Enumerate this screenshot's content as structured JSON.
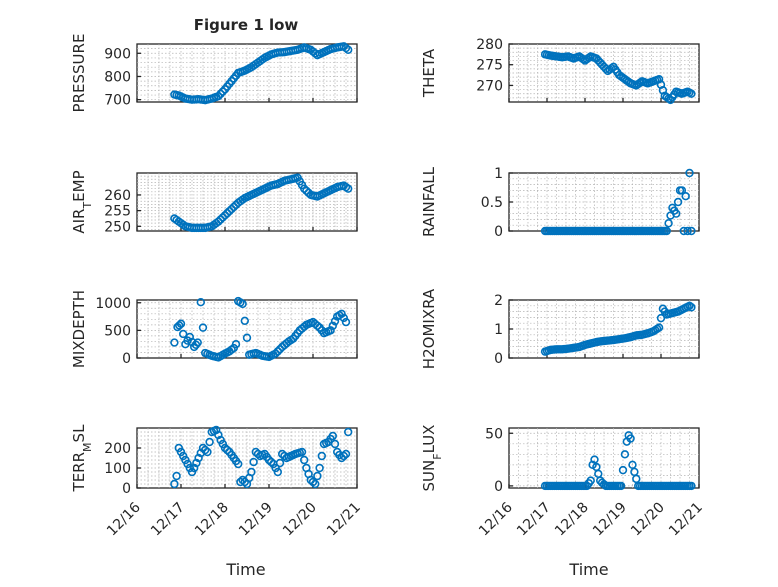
{
  "figure_title": "Figure 1 low",
  "x_axis_label": "Time",
  "x_tick_labels": [
    "12/16",
    "12/17",
    "12/18",
    "12/19",
    "12/20",
    "12/21"
  ],
  "chart_data": [
    {
      "type": "scatter",
      "ylabel": "PRESSURE",
      "xlim": [
        16,
        21
      ],
      "ylim": [
        690,
        940
      ],
      "yticks": [
        700,
        800,
        900
      ],
      "grid": true,
      "x": [
        16.85,
        16.95,
        17.1,
        17.25,
        17.4,
        17.55,
        17.7,
        17.85,
        18.0,
        18.15,
        18.3,
        18.45,
        18.6,
        18.75,
        18.9,
        19.05,
        19.2,
        19.35,
        19.5,
        19.65,
        19.8,
        19.95,
        20.1,
        20.25,
        20.4,
        20.55,
        20.7,
        20.8
      ],
      "y": [
        722,
        718,
        705,
        700,
        702,
        698,
        705,
        715,
        745,
        780,
        815,
        825,
        840,
        860,
        880,
        895,
        903,
        905,
        910,
        915,
        925,
        915,
        892,
        905,
        918,
        925,
        930,
        915
      ]
    },
    {
      "type": "scatter",
      "ylabel": "THETA",
      "xlim": [
        16,
        21
      ],
      "ylim": [
        266,
        280
      ],
      "yticks": [
        270,
        275,
        280
      ],
      "grid": true,
      "x": [
        16.95,
        17.1,
        17.25,
        17.4,
        17.55,
        17.7,
        17.85,
        18.0,
        18.15,
        18.3,
        18.45,
        18.6,
        18.75,
        18.9,
        19.05,
        19.2,
        19.35,
        19.5,
        19.65,
        19.8,
        19.95,
        20.1,
        20.25,
        20.4,
        20.55,
        20.7,
        20.8
      ],
      "y": [
        277.5,
        277.2,
        277.0,
        276.8,
        277.0,
        276.5,
        277.0,
        276.0,
        277.0,
        276.5,
        275.0,
        273.5,
        274.5,
        272.5,
        271.5,
        270.5,
        270.0,
        271.0,
        270.5,
        271.0,
        271.5,
        267.5,
        266.5,
        268.5,
        268.0,
        268.5,
        268.0
      ]
    },
    {
      "type": "scatter",
      "ylabel": "AIR_TEMP",
      "xlim": [
        16,
        21
      ],
      "ylim": [
        248.5,
        267
      ],
      "yticks": [
        250,
        255,
        260
      ],
      "grid": true,
      "x": [
        16.85,
        16.95,
        17.1,
        17.25,
        17.4,
        17.55,
        17.7,
        17.85,
        18.0,
        18.15,
        18.3,
        18.45,
        18.6,
        18.75,
        18.9,
        19.05,
        19.2,
        19.35,
        19.5,
        19.65,
        19.8,
        19.95,
        20.1,
        20.25,
        20.4,
        20.55,
        20.7,
        20.8
      ],
      "y": [
        252.5,
        251.5,
        250.0,
        249.5,
        249.5,
        249.5,
        250.0,
        251.5,
        253.5,
        255.5,
        257.5,
        259.0,
        260.0,
        261.0,
        262.0,
        263.0,
        263.5,
        264.5,
        265.0,
        265.5,
        262.0,
        260.0,
        259.5,
        260.5,
        261.5,
        262.5,
        263.0,
        262.0
      ]
    },
    {
      "type": "scatter",
      "ylabel": "RAINFALL",
      "xlim": [
        16,
        21
      ],
      "ylim": [
        0,
        1
      ],
      "yticks": [
        0,
        0.5,
        1
      ],
      "grid": true,
      "x": [
        16.95,
        17.3,
        17.65,
        18.0,
        18.35,
        18.7,
        19.05,
        19.4,
        19.75,
        20.0,
        20.15,
        20.3,
        20.4,
        20.5,
        20.55,
        20.6,
        20.65,
        20.7,
        20.75,
        20.8
      ],
      "y": [
        0,
        0,
        0,
        0,
        0,
        0,
        0,
        0,
        0,
        0,
        0,
        0.4,
        0.3,
        0.7,
        0.7,
        0,
        0.6,
        0,
        1.0,
        0
      ]
    },
    {
      "type": "scatter",
      "ylabel": "MIXDEPTH",
      "xlim": [
        16,
        21
      ],
      "ylim": [
        0,
        1050
      ],
      "yticks": [
        0,
        500,
        1000
      ],
      "grid": true,
      "x": [
        16.85,
        16.92,
        17.0,
        17.1,
        17.2,
        17.3,
        17.38,
        17.45,
        17.55,
        17.7,
        17.85,
        18.0,
        18.1,
        18.2,
        18.25,
        18.3,
        18.4,
        18.55,
        18.7,
        18.85,
        19.0,
        19.15,
        19.3,
        19.45,
        19.55,
        19.7,
        19.85,
        20.0,
        20.15,
        20.25,
        20.4,
        20.55,
        20.65,
        20.75
      ],
      "y": [
        280,
        560,
        620,
        250,
        380,
        200,
        280,
        1010,
        90,
        40,
        10,
        80,
        120,
        180,
        250,
        1030,
        980,
        60,
        90,
        40,
        20,
        80,
        200,
        300,
        350,
        500,
        600,
        650,
        550,
        450,
        500,
        750,
        800,
        650
      ]
    },
    {
      "type": "scatter",
      "ylabel": "H2OMIXRA",
      "xlim": [
        16,
        21
      ],
      "ylim": [
        0,
        2
      ],
      "yticks": [
        0,
        1,
        2
      ],
      "grid": true,
      "x": [
        16.95,
        17.1,
        17.25,
        17.4,
        17.55,
        17.7,
        17.85,
        18.0,
        18.15,
        18.3,
        18.45,
        18.6,
        18.75,
        18.9,
        19.05,
        19.2,
        19.35,
        19.5,
        19.65,
        19.8,
        19.95,
        20.05,
        20.15,
        20.3,
        20.45,
        20.6,
        20.75,
        20.8
      ],
      "y": [
        0.22,
        0.28,
        0.3,
        0.3,
        0.32,
        0.35,
        0.38,
        0.45,
        0.5,
        0.55,
        0.58,
        0.6,
        0.62,
        0.65,
        0.68,
        0.72,
        0.78,
        0.8,
        0.85,
        0.92,
        1.05,
        1.7,
        1.5,
        1.55,
        1.6,
        1.7,
        1.8,
        1.75
      ]
    },
    {
      "type": "scatter",
      "ylabel": "TERR_MSL",
      "xlim": [
        16,
        21
      ],
      "ylim": [
        0,
        300
      ],
      "yticks": [
        0,
        100,
        200
      ],
      "grid": true,
      "x": [
        16.85,
        16.9,
        16.95,
        17.05,
        17.15,
        17.25,
        17.3,
        17.4,
        17.5,
        17.6,
        17.7,
        17.8,
        17.9,
        18.0,
        18.1,
        18.2,
        18.3,
        18.35,
        18.4,
        18.5,
        18.6,
        18.7,
        18.8,
        18.9,
        19.0,
        19.1,
        19.2,
        19.3,
        19.4,
        19.5,
        19.6,
        19.75,
        19.85,
        19.95,
        20.05,
        20.15,
        20.25,
        20.35,
        20.45,
        20.55,
        20.65,
        20.75,
        20.8
      ],
      "y": [
        20,
        60,
        200,
        160,
        120,
        80,
        100,
        150,
        200,
        180,
        280,
        290,
        240,
        200,
        180,
        150,
        120,
        30,
        40,
        20,
        80,
        180,
        160,
        170,
        140,
        120,
        80,
        170,
        150,
        160,
        170,
        180,
        100,
        40,
        20,
        100,
        220,
        230,
        260,
        180,
        150,
        170,
        280
      ]
    },
    {
      "type": "scatter",
      "ylabel": "SUN_FLUX",
      "xlim": [
        16,
        21
      ],
      "ylim": [
        -2,
        55
      ],
      "yticks": [
        0,
        50
      ],
      "grid": true,
      "x": [
        16.95,
        17.2,
        17.45,
        17.7,
        17.95,
        18.05,
        18.15,
        18.2,
        18.25,
        18.3,
        18.4,
        18.45,
        18.55,
        18.6,
        18.7,
        18.85,
        18.95,
        19.0,
        19.05,
        19.1,
        19.15,
        19.2,
        19.25,
        19.4,
        19.55,
        19.7,
        19.9,
        20.1,
        20.35,
        20.6,
        20.8
      ],
      "y": [
        0,
        0,
        0,
        0,
        0,
        0,
        5,
        20,
        25,
        18,
        5,
        3,
        0,
        0,
        0,
        0,
        0,
        15,
        30,
        42,
        48,
        45,
        20,
        0,
        0,
        0,
        0,
        0,
        0,
        0,
        0
      ]
    }
  ]
}
